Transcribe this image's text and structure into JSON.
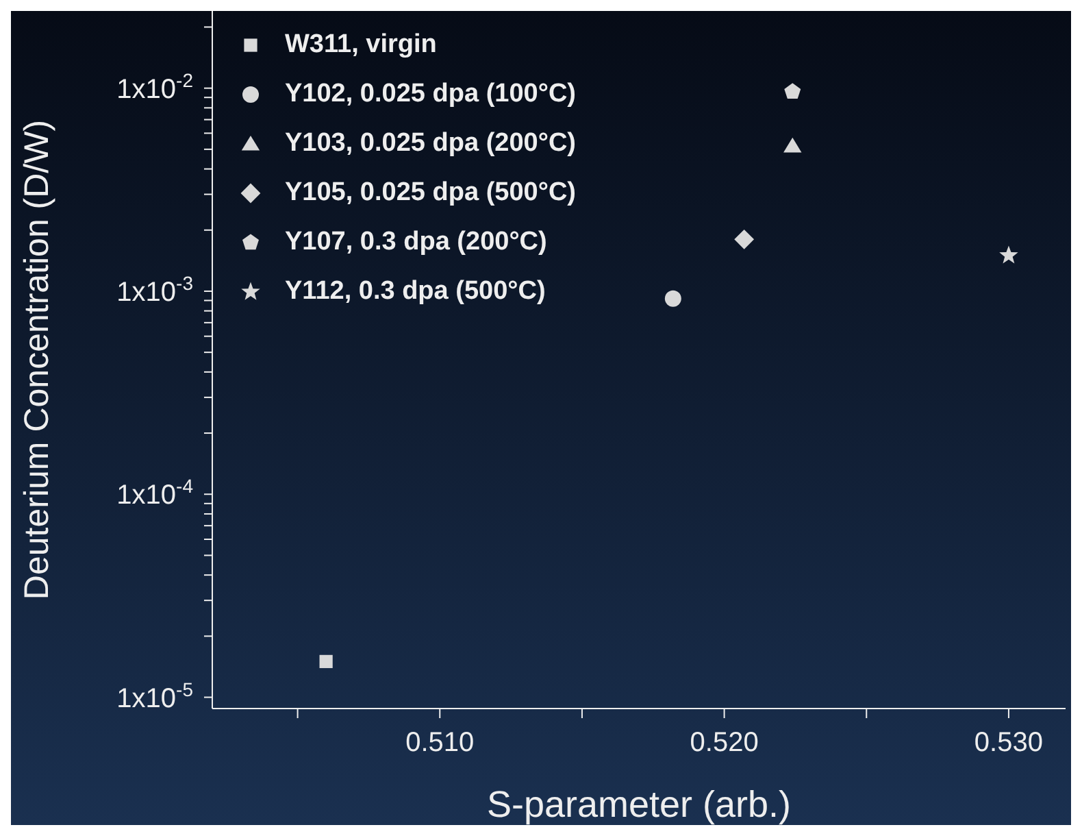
{
  "chart_data": {
    "type": "scatter",
    "xlabel": "S-parameter (arb.)",
    "ylabel": "Deuterium Concentration (D/W)",
    "log": "y",
    "grid": false,
    "legend": "top left",
    "xlim": [
      0.502,
      0.532
    ],
    "xticks": [
      {
        "value": 0.505,
        "label": null
      },
      {
        "value": 0.51,
        "label": "0.510"
      },
      {
        "value": 0.515,
        "label": null
      },
      {
        "value": 0.52,
        "label": "0.520"
      },
      {
        "value": 0.525,
        "label": null
      },
      {
        "value": 0.53,
        "label": "0.530"
      }
    ],
    "ylim": [
      8.8e-06,
      0.024
    ],
    "yticks": [
      {
        "value": 1e-05,
        "label": "1x10$^{-5}$"
      },
      {
        "value": 2e-05,
        "label": null
      },
      {
        "value": 3e-05,
        "label": null
      },
      {
        "value": 4e-05,
        "label": null
      },
      {
        "value": 5e-05,
        "label": null
      },
      {
        "value": 6e-05,
        "label": null
      },
      {
        "value": 7e-05,
        "label": null
      },
      {
        "value": 8e-05,
        "label": null
      },
      {
        "value": 9e-05,
        "label": null
      },
      {
        "value": 0.0001,
        "label": "1x10$^{-4}$"
      },
      {
        "value": 0.0002,
        "label": null
      },
      {
        "value": 0.0003,
        "label": null
      },
      {
        "value": 0.0004,
        "label": null
      },
      {
        "value": 0.0005,
        "label": null
      },
      {
        "value": 0.0006,
        "label": null
      },
      {
        "value": 0.0007,
        "label": null
      },
      {
        "value": 0.0008,
        "label": null
      },
      {
        "value": 0.0009,
        "label": null
      },
      {
        "value": 0.001,
        "label": "1x10$^{-3}$"
      },
      {
        "value": 0.002,
        "label": null
      },
      {
        "value": 0.003,
        "label": null
      },
      {
        "value": 0.004,
        "label": null
      },
      {
        "value": 0.005,
        "label": null
      },
      {
        "value": 0.006,
        "label": null
      },
      {
        "value": 0.007,
        "label": null
      },
      {
        "value": 0.008,
        "label": null
      },
      {
        "value": 0.009,
        "label": null
      },
      {
        "value": 0.01,
        "label": "1x10$^{-2}$"
      },
      {
        "value": 0.02,
        "label": null
      }
    ],
    "series": [
      {
        "name": "W311, virgin",
        "color": "#d9d9d9",
        "marker": "square",
        "x": [
          0.506
        ],
        "values": [
          1.5e-05
        ]
      },
      {
        "name": "Y102, 0.025 dpa (100°C)",
        "color": "#d9d9d9",
        "marker": "circle",
        "x": [
          0.5182
        ],
        "values": [
          0.00092
        ]
      },
      {
        "name": "Y103, 0.025 dpa (200°C)",
        "color": "#d9d9d9",
        "marker": "triangle",
        "x": [
          0.5224
        ],
        "values": [
          0.0052
        ]
      },
      {
        "name": "Y105, 0.025 dpa (500°C)",
        "color": "#d9d9d9",
        "marker": "diamond",
        "x": [
          0.5207
        ],
        "values": [
          0.0018
        ]
      },
      {
        "name": "Y107, 0.3 dpa (200°C)",
        "color": "#d9d9d9",
        "x": [
          0.5224
        ],
        "values": [
          0.0096
        ]
      },
      {
        "name": "Y112, 0.3 dpa (500°C)",
        "color": "#d9d9d9",
        "marker": "star",
        "x": [
          0.53
        ],
        "values": [
          0.0015
        ]
      }
    ]
  }
}
